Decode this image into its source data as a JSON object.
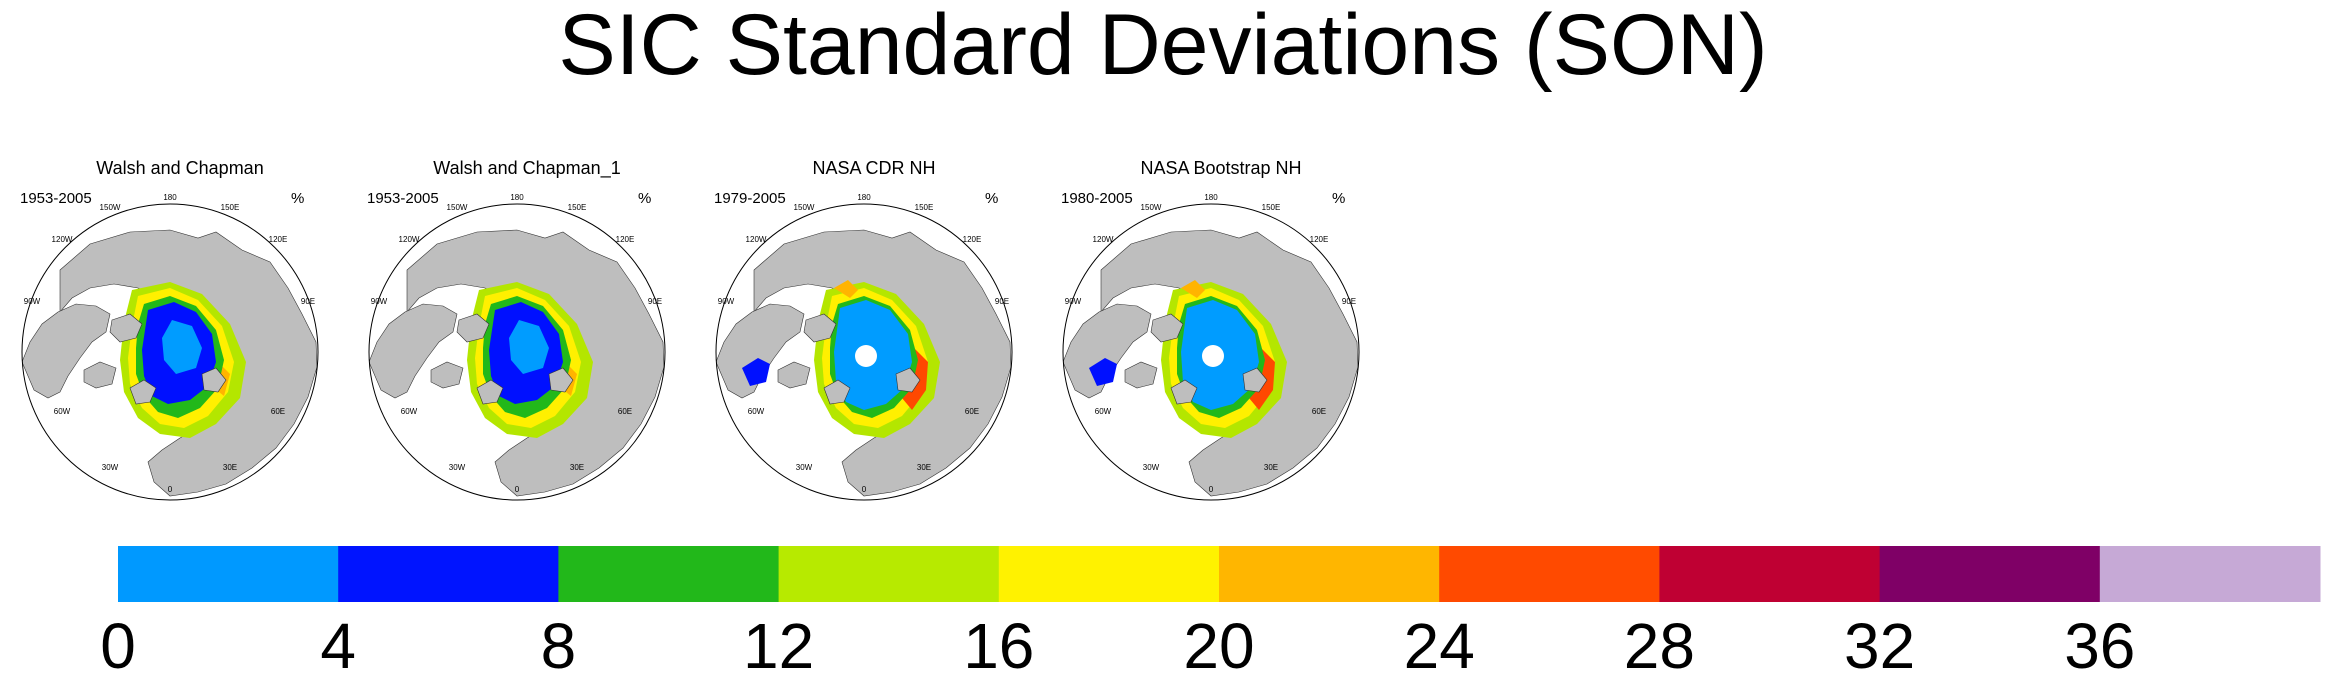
{
  "title": "SIC Standard Deviations (SON)",
  "colors": {
    "land": "#bebebe",
    "ocean": "#ffffff",
    "ice_low": "#009cff",
    "ice_mid": "#0010ff",
    "edge_green": "#22b81a",
    "edge_lime": "#b4e600",
    "edge_yellow": "#fff000",
    "edge_orange": "#ffb400",
    "edge_red": "#ff4800"
  },
  "panels": [
    {
      "title": "Walsh and Chapman",
      "years": "1953-2005",
      "unit": "%",
      "style": "wc",
      "pole_hole": false
    },
    {
      "title": "Walsh and Chapman_1",
      "years": "1953-2005",
      "unit": "%",
      "style": "wc",
      "pole_hole": false
    },
    {
      "title": "NASA CDR NH",
      "years": "1979-2005",
      "unit": "%",
      "style": "nasa",
      "pole_hole": true
    },
    {
      "title": "NASA Bootstrap NH",
      "years": "1980-2005",
      "unit": "%",
      "style": "nasa",
      "pole_hole": true
    }
  ],
  "longitude_labels": [
    "180",
    "150W",
    "150E",
    "120W",
    "120E",
    "90W",
    "90E",
    "60W",
    "60E",
    "30W",
    "30E",
    "0"
  ],
  "colorbar": {
    "colors": [
      "#0099ff",
      "#0014ff",
      "#22b81a",
      "#b7ea00",
      "#fff200",
      "#ffb600",
      "#ff4a00",
      "#bf0033",
      "#7f0066",
      "#c6a9d6"
    ],
    "labels": [
      "0",
      "4",
      "8",
      "12",
      "16",
      "20",
      "24",
      "28",
      "32",
      "36"
    ]
  }
}
